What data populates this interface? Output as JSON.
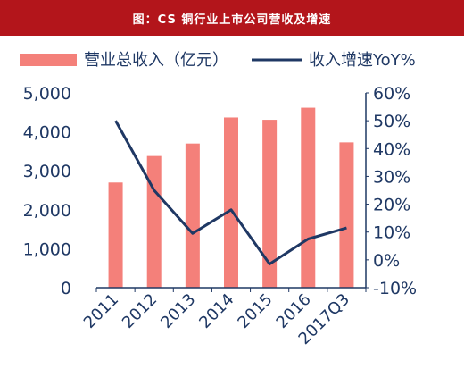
{
  "title": "图：CS 铜行业上市公司营收及增速",
  "colors": {
    "header": "#b3151b",
    "bar": "#f4807a",
    "line": "#1f3864",
    "axis": "#1f3864"
  },
  "chart_data": {
    "type": "bar",
    "categories": [
      "2011",
      "2012",
      "2013",
      "2014",
      "2015",
      "2016",
      "2017Q3"
    ],
    "series": [
      {
        "name": "营业总收入（亿元）",
        "type": "bar",
        "axis": "left",
        "values": [
          2700,
          3380,
          3700,
          4370,
          4310,
          4620,
          3730
        ]
      },
      {
        "name": "收入增速YoY%",
        "type": "line",
        "axis": "right",
        "values": [
          50,
          25,
          9.5,
          18,
          -1.5,
          7.5,
          11.5
        ]
      }
    ],
    "y_left": {
      "min": 0,
      "max": 5000,
      "ticks": [
        "0",
        "1,000",
        "2,000",
        "3,000",
        "4,000",
        "5,000"
      ]
    },
    "y_right": {
      "min": -10,
      "max": 60,
      "ticks": [
        "-10%",
        "0%",
        "10%",
        "20%",
        "30%",
        "40%",
        "50%",
        "60%"
      ]
    },
    "legend_position": "top",
    "grid": false
  }
}
